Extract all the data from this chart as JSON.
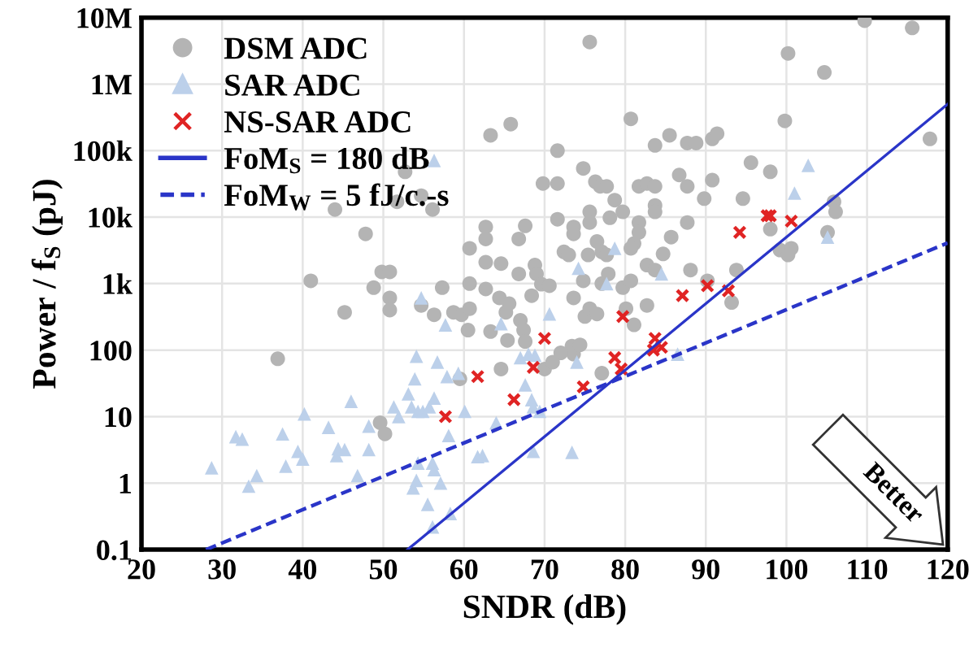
{
  "chart_data": {
    "type": "scatter",
    "xlabel": "SNDR (dB)",
    "ylabel": "Power / f$_{S}$ (pJ)",
    "xlim": [
      20,
      120
    ],
    "xticks": [
      20,
      30,
      40,
      50,
      60,
      70,
      80,
      90,
      100,
      110,
      120
    ],
    "ylim": [
      0.1,
      10000000
    ],
    "yticks": [
      {
        "value": 0.1,
        "label": "0.1"
      },
      1,
      10,
      100,
      {
        "value": 1000,
        "label": "1k"
      },
      {
        "value": 10000,
        "label": "10k"
      },
      {
        "value": 100000,
        "label": "100k"
      },
      {
        "value": 1000000,
        "label": "1M"
      },
      {
        "value": 10000000,
        "label": "10M"
      }
    ],
    "log": "y",
    "grid": true,
    "legend": "top left",
    "annotations": [
      "Better"
    ],
    "series": [
      {
        "name": "DSM ADC",
        "marker": "circle",
        "color": "#b4b4b4",
        "x": [
          63.3,
          65.8,
          52.7,
          51.7,
          54.7,
          56.1,
          44.0,
          47.8,
          60.7,
          62.7,
          62.7,
          66.8,
          67.6,
          62.7,
          64.6,
          66.8,
          49.8,
          50.8,
          41.0,
          75.6,
          100.2,
          104.7,
          109.7,
          115.6,
          117.8,
          99.8,
          80.7,
          85.5,
          83.7,
          87.7,
          88.8,
          90.8,
          91.4,
          71.6,
          95.6,
          98.0,
          74.8,
          86.7,
          90.8,
          69.8,
          71.6,
          76.3,
          76.9,
          77.7,
          78.7,
          81.7,
          82.7,
          83.7,
          87.7,
          89.8,
          94.6,
          83.7,
          83.7,
          79.7,
          75.6,
          75.6,
          78.1,
          71.6,
          73.6,
          73.6,
          81.7,
          81.7,
          87.7,
          85.7,
          81.1,
          80.7,
          76.5,
          77.1,
          75.4,
          72.4,
          73.0,
          77.7,
          84.7,
          82.7,
          83.7,
          88.1,
          93.8,
          98.0,
          99.2,
          100.6,
          100.2,
          105.9,
          106.1,
          105.1,
          68.8,
          69.0,
          69.6,
          70.6,
          74.8,
          77.1,
          77.9,
          79.7,
          80.7,
          90.2,
          36.9,
          45.2,
          48.8,
          50.8,
          50.8,
          54.7,
          56.3,
          57.3,
          58.7,
          59.7,
          60.7,
          60.7,
          60.5,
          63.3,
          62.7,
          64.4,
          65.2,
          65.6,
          67.0,
          67.4,
          65.4,
          64.6,
          49.6,
          50.2,
          59.5,
          73.4,
          73.6,
          74.4,
          72.0,
          70.0,
          71.0,
          77.1,
          75.0,
          75.6,
          76.5,
          80.1,
          81.1,
          82.7,
          93.2,
          73.6,
          68.4,
          67.6
        ],
        "values": [
          170000,
          250000,
          48000,
          17000,
          21000,
          13000,
          13000,
          5600,
          3400,
          7100,
          4700,
          4700,
          7400,
          2100,
          2000,
          1400,
          1500,
          1500,
          1100,
          4300000,
          2900000,
          1500000,
          9000000,
          7000000,
          150000,
          280000,
          300000,
          170000,
          120000,
          130000,
          130000,
          150000,
          180000,
          100000,
          66000,
          48000,
          54000,
          43000,
          36000,
          32000,
          32000,
          34000,
          29000,
          29000,
          18000,
          29000,
          32000,
          29000,
          29000,
          19000,
          19000,
          15000,
          12000,
          12000,
          12000,
          8300,
          9800,
          9300,
          7100,
          5600,
          8300,
          5900,
          8300,
          5000,
          4000,
          3400,
          4300,
          3000,
          2700,
          3000,
          2700,
          2700,
          2800,
          1900,
          1600,
          1600,
          1600,
          6600,
          3200,
          3400,
          2700,
          17000,
          12000,
          5900,
          1900,
          1400,
          980,
          930,
          1100,
          1000,
          1400,
          870,
          1100,
          1100,
          74,
          370,
          870,
          610,
          400,
          470,
          340,
          870,
          370,
          340,
          420,
          1000,
          200,
          190,
          830,
          610,
          370,
          500,
          280,
          200,
          140,
          52,
          8.1,
          5.5,
          37,
          115,
          87,
          120,
          91,
          52,
          66,
          45,
          320,
          420,
          350,
          420,
          240,
          470,
          520,
          610,
          660,
          135
        ]
      },
      {
        "name": "SAR ADC",
        "marker": "triangle",
        "color": "#bcd0ea",
        "x": [
          56.3,
          102.7,
          101.0,
          105.1,
          78.7,
          74.2,
          84.5,
          77.7,
          28.7,
          31.7,
          32.5,
          34.3,
          33.3,
          37.5,
          37.9,
          40.2,
          39.4,
          40.0,
          43.2,
          44.2,
          44.4,
          45.2,
          46.0,
          46.8,
          48.2,
          48.2,
          51.3,
          51.9,
          53.1,
          53.5,
          53.9,
          54.1,
          54.7,
          54.3,
          54.9,
          55.7,
          56.3,
          56.7,
          57.9,
          57.7,
          59.3,
          60.1,
          58.1,
          54.3,
          56.1,
          56.3,
          54.1,
          53.7,
          57.1,
          55.5,
          56.1,
          58.3,
          62.3,
          61.7,
          64.0,
          64.6,
          67.0,
          68.0,
          67.6,
          68.4,
          68.6,
          69.4,
          68.6,
          73.4,
          86.5,
          68.8,
          70.6,
          74.0
        ],
        "values": [
          71000,
          60000,
          23000,
          5000,
          3400,
          1700,
          1400,
          1000,
          1.7,
          5.0,
          4.6,
          1.3,
          0.9,
          5.5,
          1.8,
          11,
          3.0,
          2.3,
          6.9,
          2.6,
          3.3,
          3.2,
          17,
          1.3,
          7.2,
          3.2,
          14,
          10,
          22,
          14,
          37,
          81,
          610,
          12,
          12,
          14,
          19,
          66,
          40,
          240,
          45,
          12,
          5.2,
          2.0,
          2.0,
          1.6,
          1.1,
          0.85,
          1.0,
          0.48,
          0.22,
          0.35,
          2.6,
          2.5,
          8.1,
          250,
          77,
          87,
          30,
          18,
          14,
          12,
          3.0,
          2.9,
          87,
          84,
          350,
          66
        ]
      },
      {
        "name": "NS-SAR ADC",
        "marker": "cross",
        "color": "#e02424",
        "x": [
          57.7,
          61.7,
          66.2,
          68.6,
          87.1,
          90.2,
          92.8,
          79.7,
          70.0,
          78.7,
          79.5,
          74.8,
          83.7,
          83.5,
          84.5,
          94.2,
          97.6,
          98.0,
          100.6
        ],
        "values": [
          10,
          40,
          18,
          55,
          660,
          930,
          780,
          320,
          150,
          77,
          52,
          28,
          150,
          100,
          110,
          5900,
          10500,
          10500,
          8700
        ]
      },
      {
        "name": "FoM$_{S}$ = 180 dB",
        "type": "line",
        "line_style": "solid",
        "color": "#2a35c8",
        "x": [
          53,
          120
        ],
        "values": [
          0.1,
          500000
        ]
      },
      {
        "name": "FoM$_{W}$ = 5 fJ/c.-s",
        "type": "line",
        "line_style": "dashed",
        "color": "#2a35c8",
        "x": [
          28,
          120
        ],
        "values": [
          0.1,
          4090
        ]
      }
    ]
  }
}
